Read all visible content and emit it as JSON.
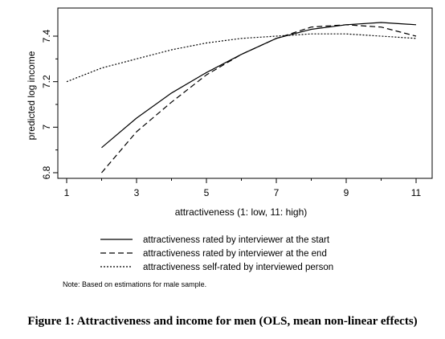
{
  "chart_data": {
    "type": "line",
    "xlabel": "attractiveness (1: low, 11: high)",
    "ylabel": "predicted log income",
    "xlim": [
      1,
      11
    ],
    "ylim": [
      6.8,
      7.5
    ],
    "xticks": [
      1,
      3,
      5,
      7,
      9,
      11
    ],
    "yticks": [
      6.8,
      7,
      7.2,
      7.4
    ],
    "xtick_labels": [
      "1",
      "3",
      "5",
      "7",
      "9",
      "11"
    ],
    "ytick_labels": [
      "6.8",
      "7",
      "7.2",
      "7.4"
    ],
    "grid": false,
    "legend_position": "bottom",
    "series": [
      {
        "name": "attractiveness rated by interviewer at the start",
        "style": "solid",
        "x": [
          2,
          3,
          4,
          5,
          6,
          7,
          8,
          9,
          10,
          11
        ],
        "y": [
          6.91,
          7.04,
          7.15,
          7.24,
          7.32,
          7.39,
          7.43,
          7.45,
          7.46,
          7.45
        ]
      },
      {
        "name": "attractiveness rated by interviewer at the end",
        "style": "dashed",
        "x": [
          2,
          3,
          4,
          5,
          6,
          7,
          8,
          9,
          10,
          11
        ],
        "y": [
          6.8,
          6.98,
          7.11,
          7.23,
          7.32,
          7.39,
          7.44,
          7.45,
          7.44,
          7.4
        ]
      },
      {
        "name": "attractiveness self-rated by interviewed person",
        "style": "dotted",
        "x": [
          1,
          2,
          3,
          4,
          5,
          6,
          7,
          8,
          9,
          10,
          11
        ],
        "y": [
          7.2,
          7.26,
          7.3,
          7.34,
          7.37,
          7.39,
          7.4,
          7.41,
          7.41,
          7.4,
          7.39
        ]
      }
    ]
  },
  "note": "Note: Based on estimations for male sample.",
  "caption": "Figure 1: Attractiveness and income for men (OLS, mean non-linear effects)"
}
